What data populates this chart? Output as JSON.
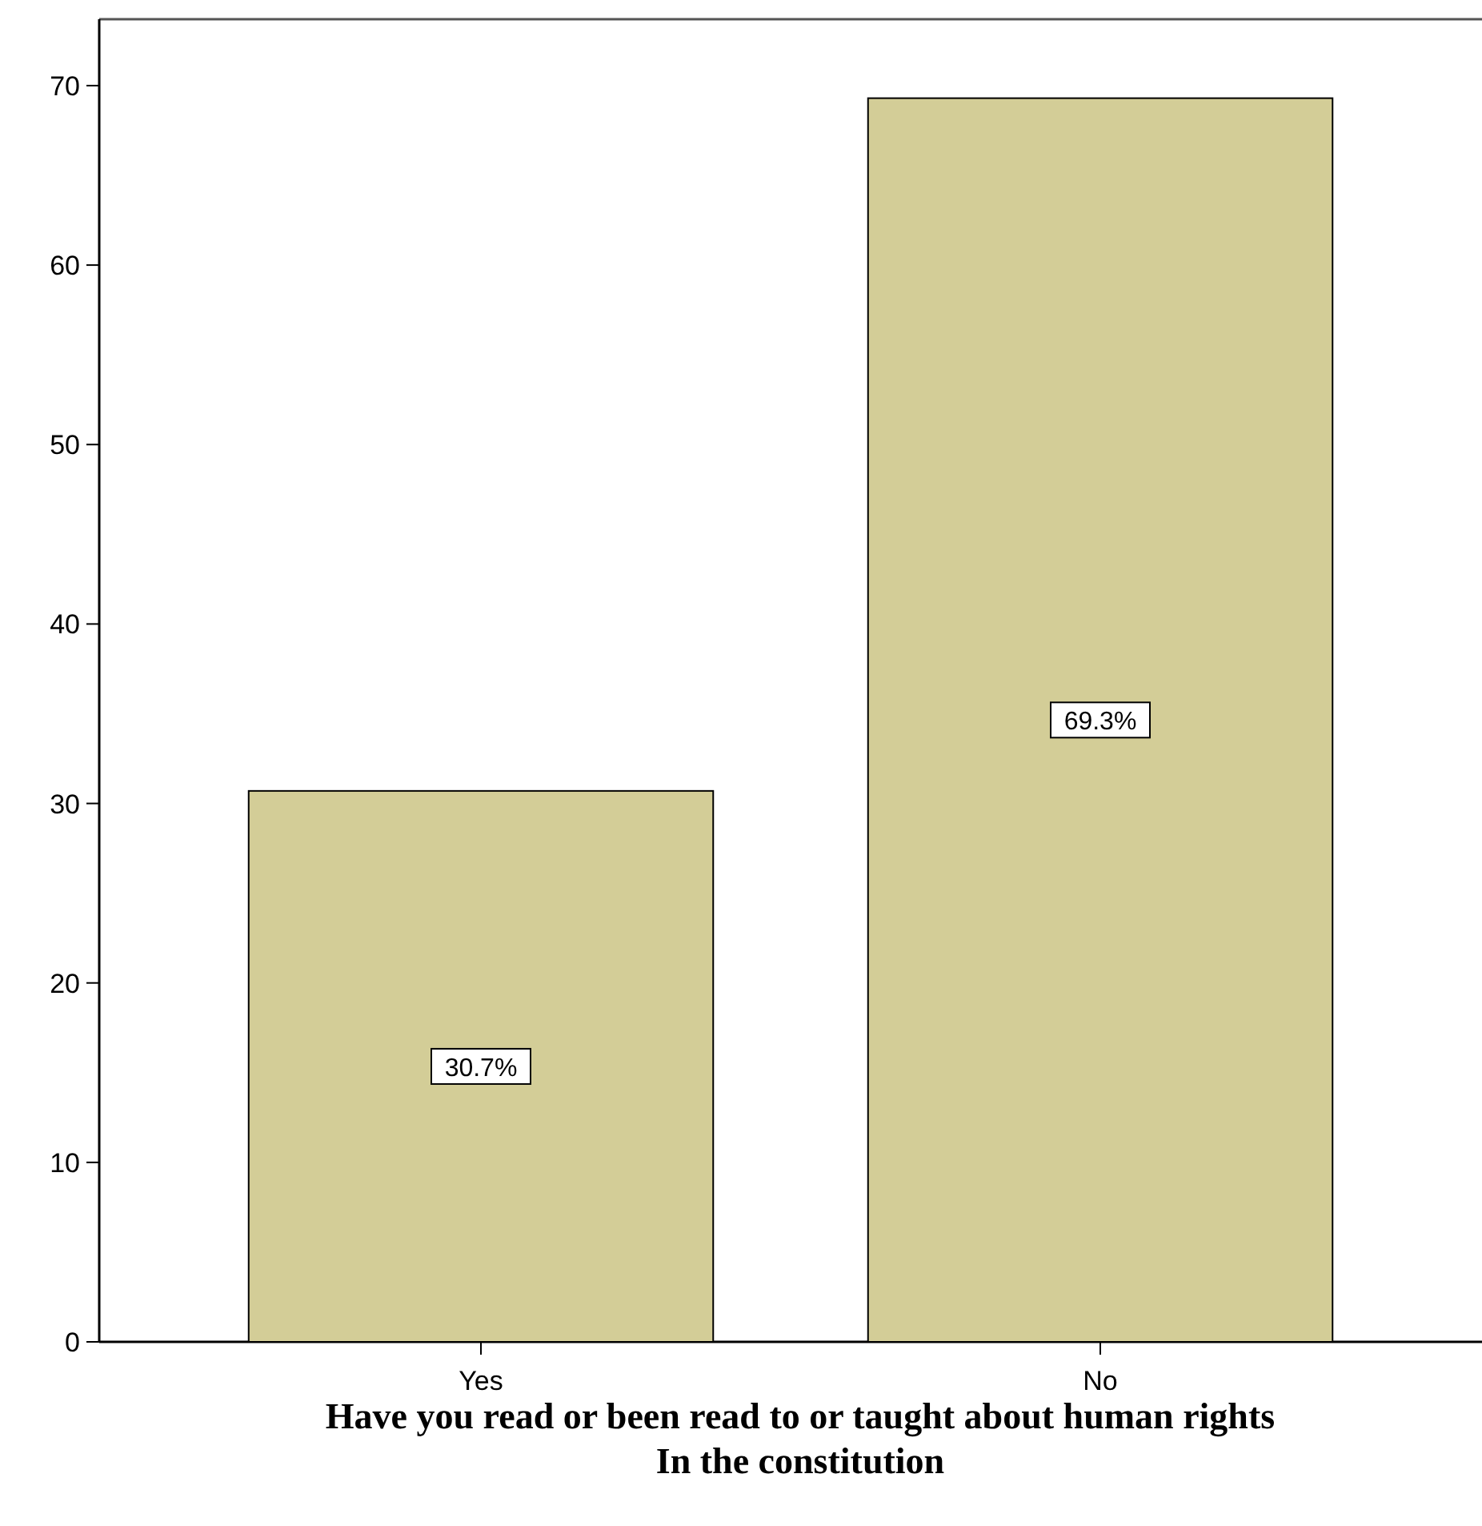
{
  "chart_data": {
    "type": "bar",
    "categories": [
      "Yes",
      "No"
    ],
    "values": [
      30.7,
      69.3
    ],
    "color": "#d3cd97",
    "value_labels": [
      "30.7%",
      "69.3%"
    ],
    "xlabel": "Have you read or been read to or taught about human rights\nIn the constitution",
    "ylim": [
      0,
      73.7
    ],
    "yticks": [
      0,
      10,
      20,
      30,
      40,
      50,
      60,
      70
    ]
  }
}
